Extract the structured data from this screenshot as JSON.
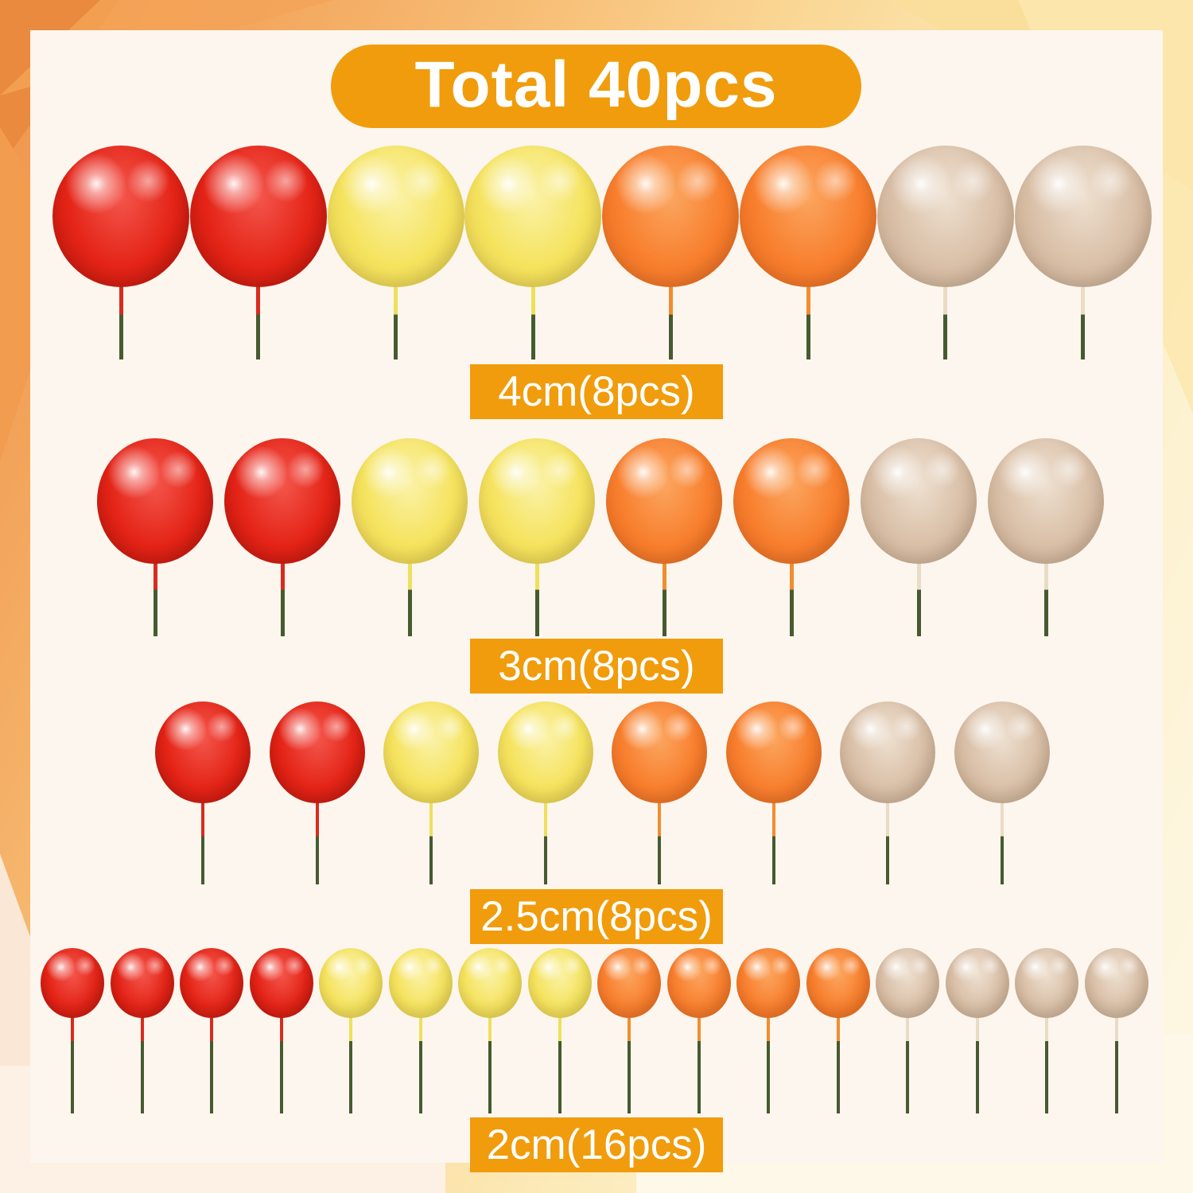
{
  "banner": {
    "label": "Total 40pcs"
  },
  "total_pieces": "40",
  "theme": {
    "badge_bg": "#f09c0c",
    "badge_text": "#ffffff",
    "panel_bg": "#fcf6ee",
    "stick_green": "#475a31"
  },
  "ball_colors": [
    {
      "name": "red",
      "base": "#e42417",
      "light": "#f4564c",
      "dark": "#ad1008",
      "stick": "#d92b1f"
    },
    {
      "name": "yellow",
      "base": "#f5e35e",
      "light": "#fbf2a8",
      "dark": "#dcc247",
      "stick": "#eee05c"
    },
    {
      "name": "orange",
      "base": "#f87f2e",
      "light": "#fba660",
      "dark": "#e0641b",
      "stick": "#f18d2e"
    },
    {
      "name": "beige",
      "base": "#d9bfa7",
      "light": "#eee0d0",
      "dark": "#bfa283",
      "stick": "#e9dcc7"
    }
  ],
  "rows": [
    {
      "label": "4cm(8pcs)",
      "size": "4cm",
      "pieces": 8,
      "sequence": [
        "red",
        "red",
        "yellow",
        "yellow",
        "orange",
        "orange",
        "beige",
        "beige"
      ]
    },
    {
      "label": "3cm(8pcs)",
      "size": "3cm",
      "pieces": 8,
      "sequence": [
        "red",
        "red",
        "yellow",
        "yellow",
        "orange",
        "orange",
        "beige",
        "beige"
      ]
    },
    {
      "label": "2.5cm(8pcs)",
      "size": "2.5cm",
      "pieces": 8,
      "sequence": [
        "red",
        "red",
        "yellow",
        "yellow",
        "orange",
        "orange",
        "beige",
        "beige"
      ]
    },
    {
      "label": "2cm(16pcs)",
      "size": "2cm",
      "pieces": 16,
      "sequence": [
        "red",
        "red",
        "red",
        "red",
        "yellow",
        "yellow",
        "yellow",
        "yellow",
        "orange",
        "orange",
        "orange",
        "orange",
        "beige",
        "beige",
        "beige",
        "beige"
      ]
    }
  ]
}
